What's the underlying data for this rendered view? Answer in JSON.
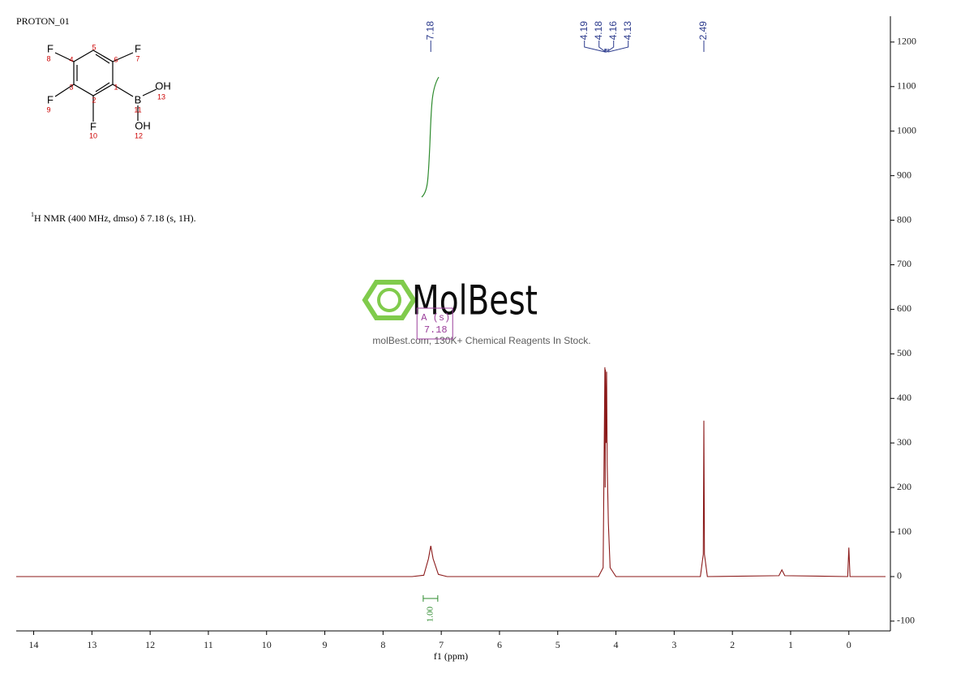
{
  "chart_data": {
    "type": "line",
    "title": "PROTON_01",
    "description": "H NMR (400 MHz, dmso) δ 7.18 (s, 1H).",
    "description_superscript": "1",
    "xlabel": "f1 (ppm)",
    "xlim": [
      14.3,
      -0.63
    ],
    "xticks": [
      14,
      13,
      12,
      11,
      10,
      9,
      8,
      7,
      6,
      5,
      4,
      3,
      2,
      1,
      0
    ],
    "ylim": [
      -122,
      1258
    ],
    "yticks": [
      -100,
      0,
      100,
      200,
      300,
      400,
      500,
      600,
      700,
      800,
      900,
      1000,
      1100,
      1200
    ],
    "color": "#8b1a1a",
    "x": [
      14.3,
      7.5,
      7.3,
      7.22,
      7.18,
      7.14,
      7.05,
      6.9,
      4.3,
      4.22,
      4.19,
      4.185,
      4.18,
      4.17,
      4.16,
      4.15,
      4.13,
      4.1,
      4.0,
      2.55,
      2.5,
      2.49,
      2.48,
      2.43,
      1.2,
      1.15,
      1.1,
      0.02,
      0.0,
      -0.02,
      -0.63
    ],
    "values": [
      0,
      0,
      3,
      40,
      69,
      40,
      5,
      0,
      0,
      20,
      470,
      200,
      465,
      300,
      460,
      250,
      120,
      20,
      0,
      0,
      50,
      350,
      50,
      0,
      2,
      15,
      2,
      0,
      65,
      0,
      0
    ],
    "peak_labels": [
      7.18,
      4.19,
      4.18,
      4.16,
      4.13,
      2.49
    ],
    "integral": {
      "from": 7.31,
      "to": 7.06,
      "value": {
        "value": 1,
        "label": "1.00"
      }
    },
    "multiplet": {
      "label": "A (s)",
      "shift": 7.18
    },
    "molecule": {
      "atoms": [
        "F",
        "8",
        "4",
        "5",
        "6",
        "F",
        "7",
        "3",
        "1",
        "OH",
        "13",
        "B",
        "11",
        "F",
        "9",
        "2",
        "F",
        "10",
        "OH",
        "12"
      ]
    },
    "watermark": {
      "brand": "MolBest",
      "tagline": "molBest.com, 130K+ Chemical Reagents In Stock."
    }
  }
}
